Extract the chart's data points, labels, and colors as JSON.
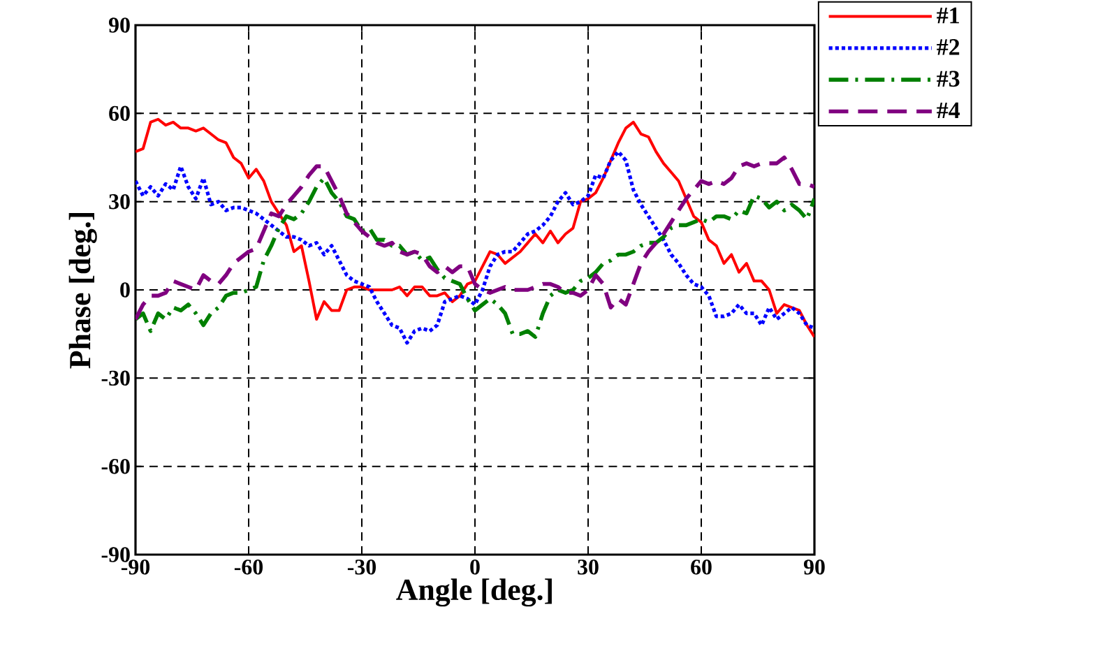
{
  "chart_data": {
    "type": "line",
    "xlabel": "Angle [deg.]",
    "ylabel": "Phase [deg.]",
    "xlim": [
      -90,
      90
    ],
    "ylim": [
      -90,
      90
    ],
    "xticks": [
      -90,
      -60,
      -30,
      0,
      30,
      60,
      90
    ],
    "yticks": [
      -90,
      -60,
      -30,
      0,
      30,
      60,
      90
    ],
    "grid": true,
    "legend": "top right",
    "x": [
      -90,
      -88,
      -86,
      -84,
      -82,
      -80,
      -78,
      -76,
      -74,
      -72,
      -70,
      -68,
      -66,
      -64,
      -62,
      -60,
      -58,
      -56,
      -54,
      -52,
      -50,
      -48,
      -46,
      -44,
      -42,
      -40,
      -38,
      -36,
      -34,
      -32,
      -30,
      -28,
      -26,
      -24,
      -22,
      -20,
      -18,
      -16,
      -14,
      -12,
      -10,
      -8,
      -6,
      -4,
      -2,
      0,
      2,
      4,
      6,
      8,
      10,
      12,
      14,
      16,
      18,
      20,
      22,
      24,
      26,
      28,
      30,
      32,
      34,
      36,
      38,
      40,
      42,
      44,
      46,
      48,
      50,
      52,
      54,
      56,
      58,
      60,
      62,
      64,
      66,
      68,
      70,
      72,
      74,
      76,
      78,
      80,
      82,
      84,
      86,
      88,
      90
    ],
    "series": [
      {
        "name": "#1",
        "color": "#ff0000",
        "line_style": "solid",
        "values": [
          47,
          48,
          57,
          58,
          56,
          57,
          55,
          55,
          54,
          55,
          53,
          51,
          50,
          45,
          43,
          38,
          41,
          37,
          30,
          26,
          22,
          13,
          15,
          3,
          -10,
          -4,
          -7,
          -7,
          0,
          1,
          1,
          0,
          0,
          0,
          0,
          1,
          -2,
          1,
          1,
          -2,
          -2,
          -1,
          -4,
          -2,
          2,
          3,
          8,
          13,
          12,
          9,
          11,
          13,
          16,
          19,
          16,
          20,
          16,
          19,
          21,
          30,
          31,
          33,
          38,
          44,
          50,
          55,
          57,
          53,
          52,
          47,
          43,
          40,
          37,
          31,
          25,
          23,
          17,
          15,
          9,
          12,
          6,
          9,
          3,
          3,
          0,
          -8,
          -5,
          -6,
          -7,
          -12,
          -16
        ]
      },
      {
        "name": "#2",
        "color": "#0000ff",
        "line_style": "dotted",
        "values": [
          37,
          32,
          35,
          32,
          36,
          34,
          42,
          35,
          31,
          38,
          29,
          30,
          27,
          28,
          28,
          27,
          26,
          24,
          22,
          20,
          18,
          18,
          17,
          15,
          16,
          12,
          15,
          10,
          5,
          3,
          2,
          1,
          -4,
          -8,
          -12,
          -13,
          -18,
          -14,
          -13,
          -14,
          -12,
          -4,
          -3,
          -2,
          -3,
          -5,
          0,
          8,
          12,
          13,
          13,
          16,
          19,
          20,
          22,
          25,
          30,
          33,
          29,
          30,
          32,
          39,
          38,
          44,
          47,
          44,
          34,
          29,
          25,
          21,
          17,
          12,
          9,
          5,
          2,
          1,
          -2,
          -9,
          -9,
          -8,
          -5,
          -8,
          -8,
          -12,
          -6,
          -10,
          -8,
          -6,
          -8,
          -12,
          -13
        ]
      },
      {
        "name": "#3",
        "color": "#008000",
        "line_style": "dashdot",
        "values": [
          -10,
          -8,
          -14,
          -8,
          -10,
          -6,
          -7,
          -5,
          -8,
          -12,
          -8,
          -6,
          -2,
          -1,
          -1,
          0,
          1,
          10,
          15,
          21,
          25,
          24,
          26,
          30,
          35,
          38,
          33,
          30,
          25,
          24,
          20,
          21,
          17,
          17,
          15,
          15,
          12,
          13,
          10,
          11,
          7,
          4,
          3,
          2,
          -3,
          -7,
          -5,
          -3,
          -5,
          -8,
          -15,
          -15,
          -14,
          -16,
          -8,
          -2,
          0,
          -1,
          0,
          3,
          4,
          6,
          9,
          10,
          12,
          12,
          13,
          15,
          16,
          16,
          18,
          21,
          22,
          22,
          23,
          24,
          23,
          25,
          25,
          24,
          27,
          26,
          32,
          31,
          28,
          30,
          27,
          29,
          27,
          24,
          31
        ]
      },
      {
        "name": "#4",
        "color": "#800080",
        "line_style": "dashed",
        "values": [
          -10,
          -5,
          -2,
          -2,
          -1,
          3,
          2,
          1,
          0,
          5,
          3,
          2,
          5,
          9,
          11,
          13,
          14,
          20,
          26,
          25,
          29,
          32,
          35,
          39,
          42,
          42,
          37,
          32,
          26,
          23,
          20,
          18,
          16,
          15,
          16,
          13,
          12,
          13,
          12,
          8,
          6,
          8,
          6,
          8,
          8,
          2,
          0,
          -1,
          0,
          1,
          0,
          0,
          0,
          1,
          2,
          2,
          1,
          -1,
          -1,
          -2,
          0,
          5,
          2,
          -6,
          -3,
          -5,
          2,
          9,
          13,
          16,
          19,
          23,
          27,
          31,
          34,
          37,
          36,
          37,
          36,
          38,
          42,
          43,
          42,
          43,
          43,
          43,
          45,
          41,
          36,
          36,
          35
        ]
      }
    ]
  }
}
